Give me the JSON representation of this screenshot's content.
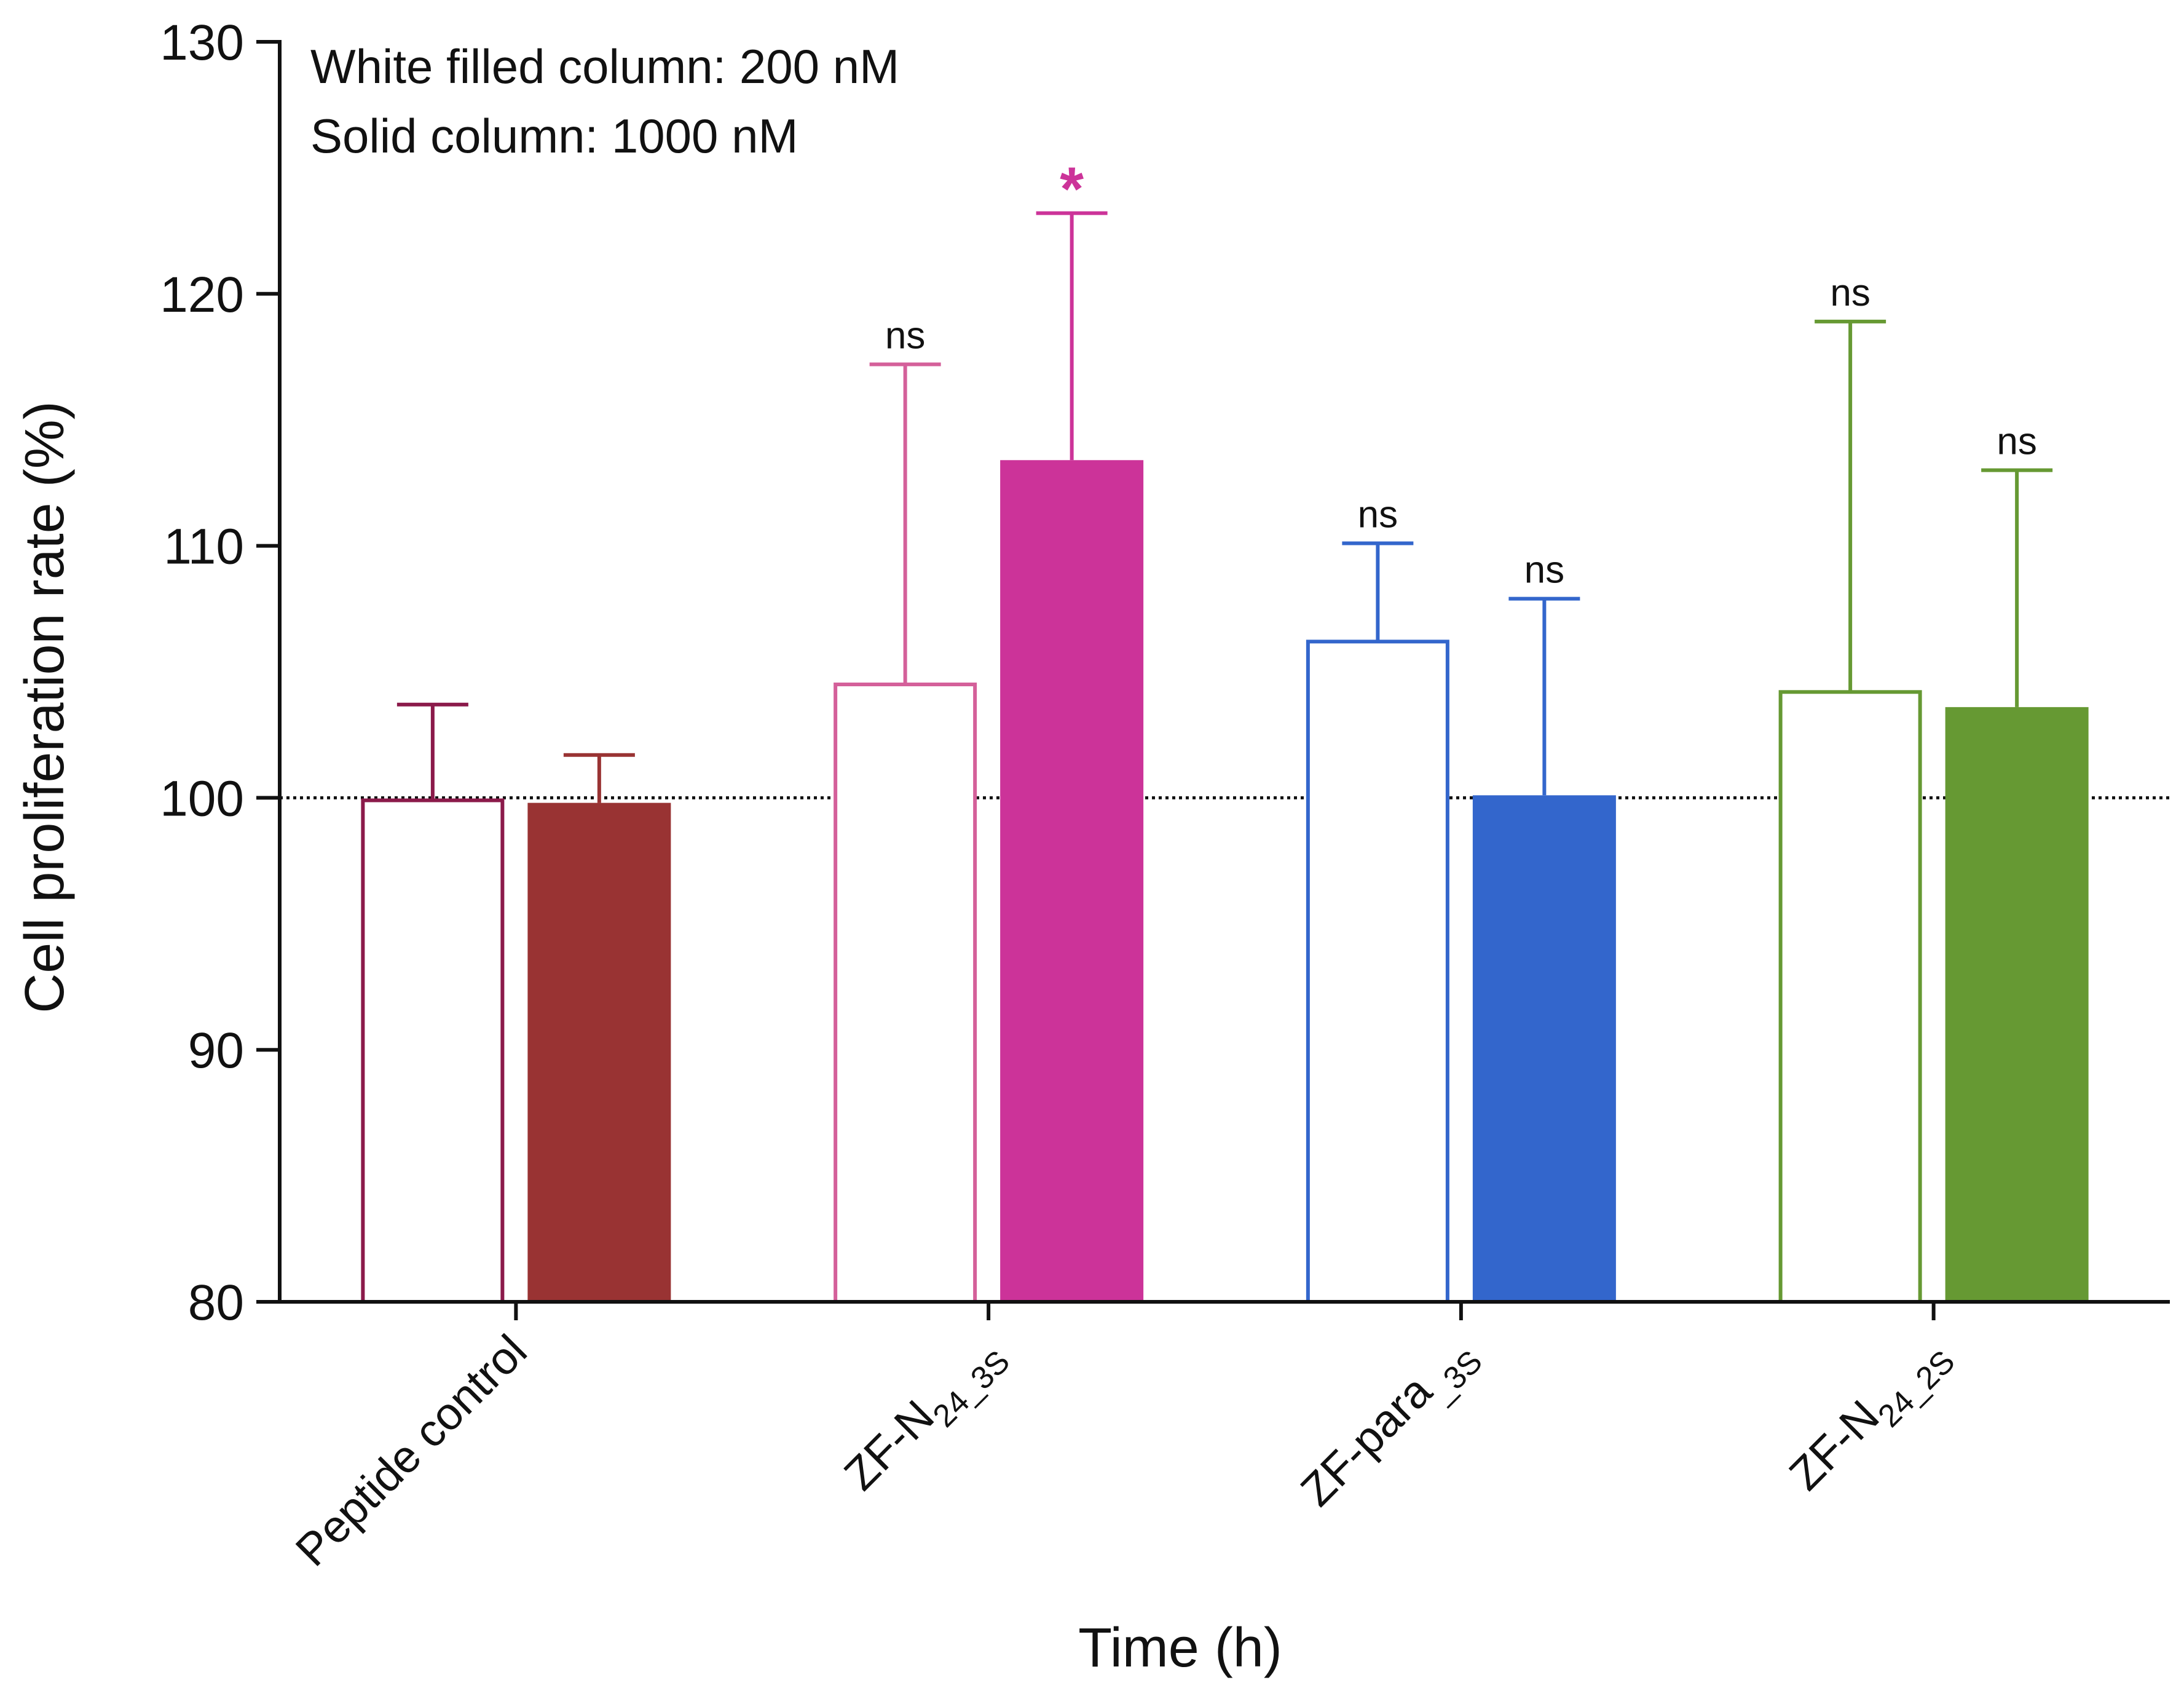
{
  "chart_data": {
    "type": "bar",
    "title": "",
    "xlabel": "Time (h)",
    "ylabel": "Cell proliferation rate (%)",
    "ylim": [
      80,
      130
    ],
    "yticks": [
      80,
      90,
      100,
      110,
      120,
      130
    ],
    "reference_line": 100,
    "legend": [
      "White filled column: 200 nM",
      "Solid column: 1000 nM"
    ],
    "categories": [
      {
        "label": "Peptide control",
        "main": "Peptide control",
        "sub": ""
      },
      {
        "label": "ZF-N24_3S",
        "main": "ZF-N",
        "sub": "24_3S"
      },
      {
        "label": "ZF-para_3S",
        "main": "ZF-para",
        "sub": "_3S"
      },
      {
        "label": "ZF-N24_2S",
        "main": "ZF-N",
        "sub": "24_2S"
      }
    ],
    "series": [
      {
        "fill": "white",
        "colors": [
          "#8b1a4a",
          "#d4609a",
          "#3366cc",
          "#669933"
        ],
        "values": [
          99.9,
          104.5,
          106.2,
          104.2
        ],
        "error": [
          3.8,
          12.7,
          3.9,
          14.7
        ],
        "significance": [
          "",
          "ns",
          "ns",
          "ns"
        ]
      },
      {
        "fill": "solid",
        "colors": [
          "#993333",
          "#cc3399",
          "#3366cc",
          "#669933"
        ],
        "values": [
          99.8,
          113.4,
          100.1,
          103.6
        ],
        "error": [
          1.9,
          9.8,
          7.8,
          9.4
        ],
        "significance": [
          "",
          "*",
          "ns",
          "ns"
        ]
      }
    ]
  }
}
